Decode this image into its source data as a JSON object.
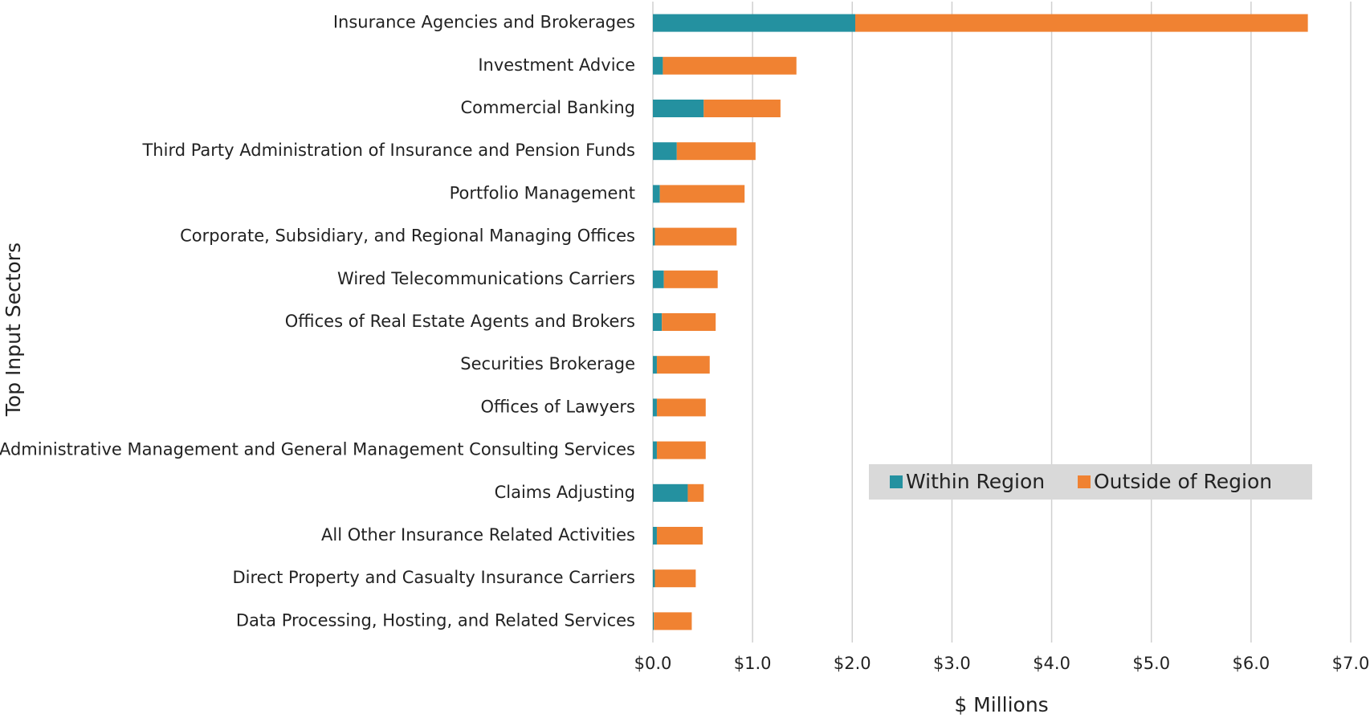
{
  "chart_data": {
    "type": "bar",
    "orientation": "horizontal",
    "stacked": true,
    "xlabel": "$ Millions",
    "ylabel": "Top Input Sectors",
    "categories": [
      "Insurance Agencies and Brokerages",
      "Investment Advice",
      "Commercial Banking",
      "Third Party Administration of Insurance and Pension Funds",
      "Portfolio Management",
      "Corporate, Subsidiary, and Regional Managing Offices",
      "Wired Telecommunications Carriers",
      "Offices of Real Estate Agents and Brokers",
      "Securities Brokerage",
      "Offices of Lawyers",
      "Administrative Management and General Management Consulting Services",
      "Claims Adjusting",
      "All Other Insurance Related Activities",
      "Direct Property and Casualty Insurance Carriers",
      "Data Processing, Hosting, and Related Services"
    ],
    "series": [
      {
        "name": "Within Region",
        "color": "#2491a0",
        "values": [
          2.03,
          0.1,
          0.51,
          0.24,
          0.07,
          0.02,
          0.11,
          0.09,
          0.04,
          0.04,
          0.04,
          0.35,
          0.04,
          0.02,
          0.01
        ]
      },
      {
        "name": "Outside of Region",
        "color": "#f08232",
        "values": [
          4.54,
          1.34,
          0.77,
          0.79,
          0.85,
          0.82,
          0.54,
          0.54,
          0.53,
          0.49,
          0.49,
          0.16,
          0.46,
          0.41,
          0.38
        ]
      }
    ],
    "xlim": [
      0,
      7
    ],
    "xticks": [
      {
        "value": 0,
        "label": "$0.0"
      },
      {
        "value": 1,
        "label": "$1.0"
      },
      {
        "value": 2,
        "label": "$2.0"
      },
      {
        "value": 3,
        "label": "$3.0"
      },
      {
        "value": 4,
        "label": "$4.0"
      },
      {
        "value": 5,
        "label": "$5.0"
      },
      {
        "value": 6,
        "label": "$6.0"
      },
      {
        "value": 7,
        "label": "$7.0"
      }
    ],
    "grid": true,
    "legend": "lower right"
  }
}
